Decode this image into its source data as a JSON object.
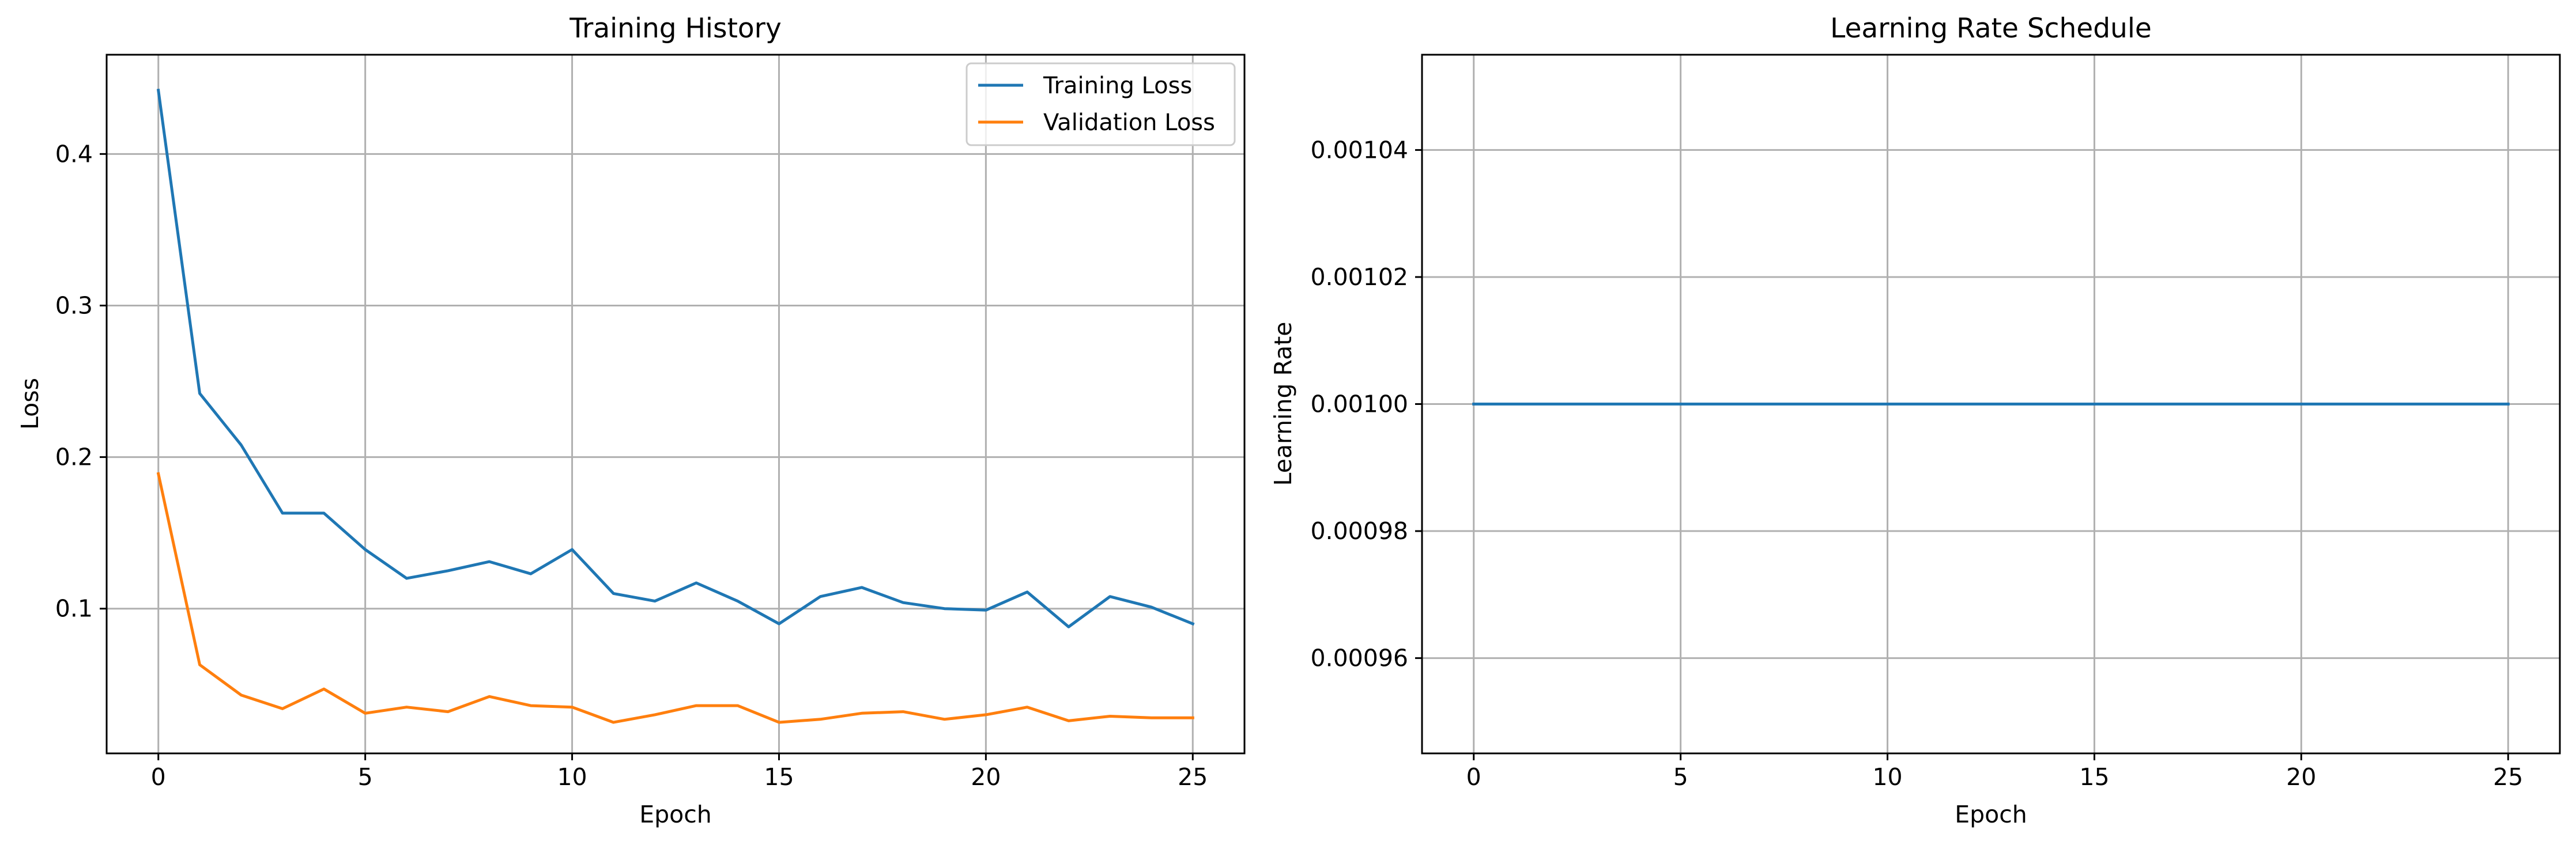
{
  "chart_data": [
    {
      "type": "line",
      "title": "Training History",
      "xlabel": "Epoch",
      "ylabel": "Loss",
      "x": [
        0,
        1,
        2,
        3,
        4,
        5,
        6,
        7,
        8,
        9,
        10,
        11,
        12,
        13,
        14,
        15,
        16,
        17,
        18,
        19,
        20,
        21,
        22,
        23,
        24,
        25
      ],
      "xlim": [
        -1.25,
        26.25
      ],
      "ylim": [
        0.0045,
        0.4655
      ],
      "xticks": [
        "0",
        "5",
        "10",
        "15",
        "20",
        "25"
      ],
      "yticks": [
        "0.1",
        "0.2",
        "0.3",
        "0.4"
      ],
      "grid": true,
      "legend": "top-right",
      "series": [
        {
          "name": "Training Loss",
          "color": "#1f77b4",
          "values": [
            0.442,
            0.242,
            0.208,
            0.163,
            0.163,
            0.139,
            0.12,
            0.125,
            0.131,
            0.123,
            0.139,
            0.11,
            0.105,
            0.117,
            0.105,
            0.09,
            0.108,
            0.114,
            0.104,
            0.1,
            0.099,
            0.111,
            0.088,
            0.108,
            0.101,
            0.09
          ]
        },
        {
          "name": "Validation Loss",
          "color": "#ff7f0e",
          "values": [
            0.189,
            0.063,
            0.043,
            0.034,
            0.047,
            0.031,
            0.035,
            0.032,
            0.042,
            0.036,
            0.035,
            0.025,
            0.03,
            0.036,
            0.036,
            0.025,
            0.027,
            0.031,
            0.032,
            0.027,
            0.03,
            0.035,
            0.026,
            0.029,
            0.028,
            0.028
          ]
        }
      ]
    },
    {
      "type": "line",
      "title": "Learning Rate Schedule",
      "xlabel": "Epoch",
      "ylabel": "Learning Rate",
      "x": [
        0,
        1,
        2,
        3,
        4,
        5,
        6,
        7,
        8,
        9,
        10,
        11,
        12,
        13,
        14,
        15,
        16,
        17,
        18,
        19,
        20,
        21,
        22,
        23,
        24,
        25
      ],
      "xlim": [
        -1.25,
        26.25
      ],
      "ylim": [
        0.000945,
        0.001055
      ],
      "xticks": [
        "0",
        "5",
        "10",
        "15",
        "20",
        "25"
      ],
      "yticks": [
        "0.00096",
        "0.00098",
        "0.00100",
        "0.00102",
        "0.00104"
      ],
      "grid": true,
      "series": [
        {
          "color": "#1f77b4",
          "values": [
            0.001,
            0.001,
            0.001,
            0.001,
            0.001,
            0.001,
            0.001,
            0.001,
            0.001,
            0.001,
            0.001,
            0.001,
            0.001,
            0.001,
            0.001,
            0.001,
            0.001,
            0.001,
            0.001,
            0.001,
            0.001,
            0.001,
            0.001,
            0.001,
            0.001,
            0.001
          ]
        }
      ]
    }
  ]
}
